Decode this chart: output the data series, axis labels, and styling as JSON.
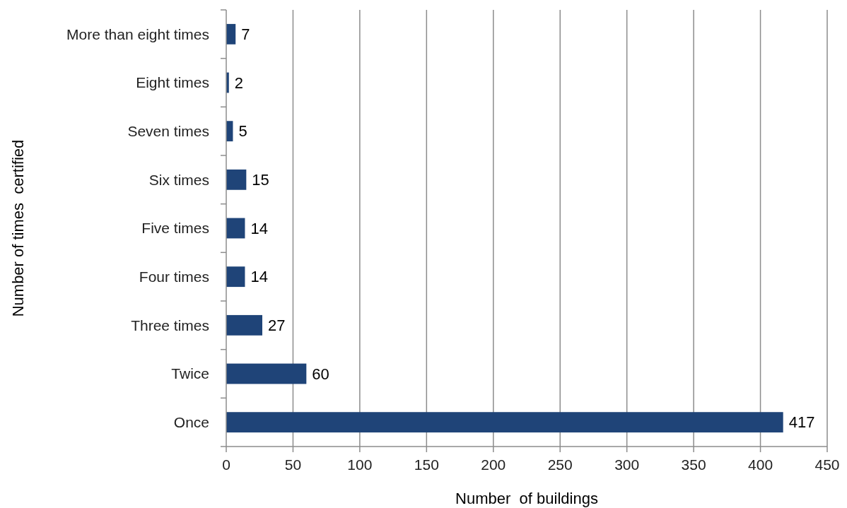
{
  "chart_data": {
    "type": "bar",
    "orientation": "horizontal",
    "xlabel": "Number  of buildings",
    "ylabel": "Number of times  certified",
    "categories": [
      "More than eight times",
      "Eight times",
      "Seven times",
      "Six times",
      "Five times",
      "Four times",
      "Three times",
      "Twice",
      "Once"
    ],
    "values": [
      7,
      2,
      5,
      15,
      14,
      14,
      27,
      60,
      417
    ],
    "color": "#1f4478",
    "xlim": [
      0,
      450
    ],
    "xticks": [
      0,
      50,
      100,
      150,
      200,
      250,
      300,
      350,
      400,
      450
    ],
    "grid": "x",
    "data_labels": true
  }
}
